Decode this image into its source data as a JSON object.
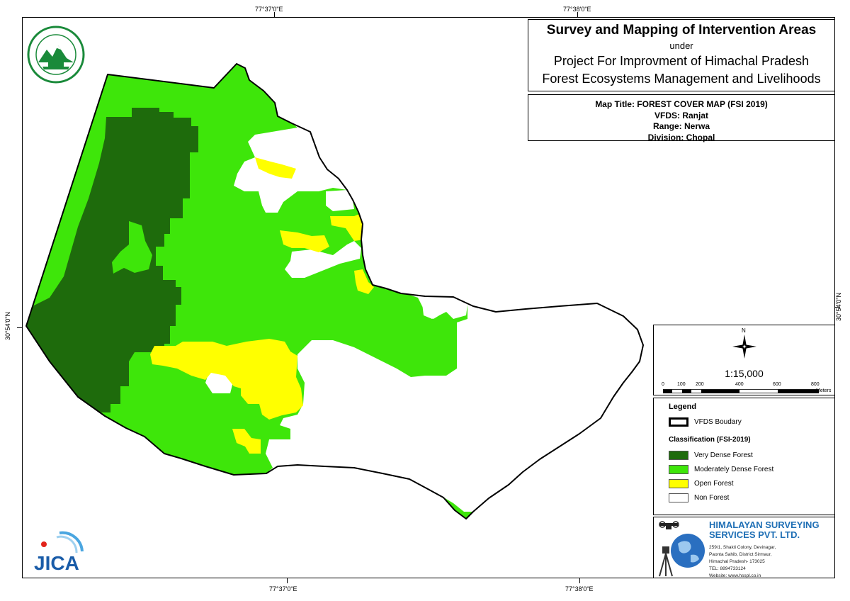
{
  "header": {
    "title": "Survey and Mapping of Intervention Areas",
    "under": "under",
    "project_line1": "Project For Improvment of Himachal Pradesh",
    "project_line2": "Forest Ecosystems Management and Livelihoods"
  },
  "map_info": {
    "map_title": "Map Title: FOREST COVER MAP (FSI 2019)",
    "vfds": "VFDS: Ranjat",
    "range": "Range: Nerwa",
    "division": "Division: Chopal"
  },
  "grid": {
    "top_left": "77°37'0\"E",
    "top_right": "77°38'0\"E",
    "bottom_left": "77°37'0\"E",
    "bottom_right": "77°38'0\"E",
    "left": "30°54'0\"N",
    "right": "30°54'0\"N"
  },
  "north": {
    "label": "N",
    "icon": "north-arrow-icon"
  },
  "scale": {
    "ratio": "1:15,000",
    "ticks": [
      "0",
      "100",
      "200",
      "400",
      "600",
      "800"
    ],
    "unit": "Meters"
  },
  "legend": {
    "title": "Legend",
    "boundary_label": "VFDS Boudary",
    "classification_title": "Classification (FSI-2019)",
    "items": [
      {
        "label": "Very Dense Forest",
        "color": "#1e6b0c"
      },
      {
        "label": "Moderately Dense Forest",
        "color": "#3ee60a"
      },
      {
        "label": "Open Forest",
        "color": "#ffff00"
      },
      {
        "label": "Non Forest",
        "color": "#ffffff"
      }
    ]
  },
  "company": {
    "name_line1": "HIMALAYAN SURVEYING",
    "name_line2": "SERVICES PVT. LTD.",
    "address": [
      "259/1, Shakti Colony, Devinagar,",
      "Paonta Sahib, District Sirmaur,",
      "Himachal Pradesh- 173025",
      "TEL: 8894733124",
      "Website: www.hsspl.co.in"
    ]
  },
  "logos": {
    "department_logo": "hp-forest-department-logo",
    "jica_logo": "JICA"
  },
  "colors": {
    "very_dense": "#1e6b0c",
    "moderately_dense": "#3ee60a",
    "open": "#ffff00",
    "non_forest": "#ffffff",
    "company_blue": "#1f6fb5"
  }
}
